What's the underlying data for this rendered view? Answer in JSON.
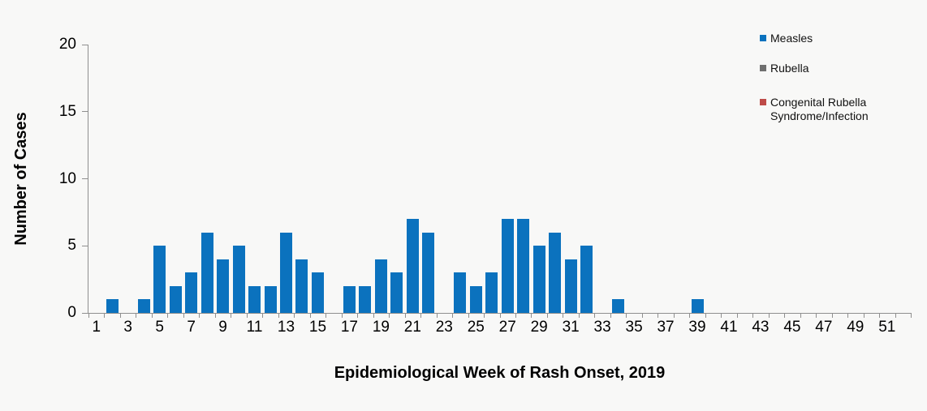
{
  "figure": {
    "background_color": "#f8f8f7",
    "axis_color": "#8f8f8f"
  },
  "y_axis": {
    "title": "Number of Cases",
    "tick_labels": [
      "0",
      "5",
      "10",
      "15",
      "20"
    ],
    "tick_values": [
      0,
      5,
      10,
      15,
      20
    ],
    "max": 20
  },
  "x_axis": {
    "title": "Epidemiological Week of Rash Onset, 2019",
    "labeled_weeks": [
      1,
      3,
      5,
      7,
      9,
      11,
      13,
      15,
      17,
      19,
      21,
      23,
      25,
      27,
      29,
      31,
      33,
      35,
      37,
      39,
      41,
      43,
      45,
      47,
      49,
      51
    ]
  },
  "legend": {
    "items": [
      {
        "label": "Measles",
        "color": "#0b72be"
      },
      {
        "label": "Rubella",
        "color": "#6f6f6f"
      },
      {
        "label": "Congenital Rubella Syndrome/Infection",
        "color": "#be4b48"
      }
    ]
  },
  "chart_data": {
    "type": "bar",
    "title": "",
    "xlabel": "Epidemiological Week of Rash Onset, 2019",
    "ylabel": "Number of Cases",
    "ylim": [
      0,
      20
    ],
    "yticks": [
      0,
      5,
      10,
      15,
      20
    ],
    "grid": false,
    "legend_position": "right-top",
    "categories": [
      1,
      2,
      3,
      4,
      5,
      6,
      7,
      8,
      9,
      10,
      11,
      12,
      13,
      14,
      15,
      16,
      17,
      18,
      19,
      20,
      21,
      22,
      23,
      24,
      25,
      26,
      27,
      28,
      29,
      30,
      31,
      32,
      33,
      34,
      35,
      36,
      37,
      38,
      39,
      40,
      41,
      42,
      43,
      44,
      45,
      46,
      47,
      48,
      49,
      50,
      51,
      52
    ],
    "series": [
      {
        "name": "Measles",
        "color": "#0b72be",
        "values": [
          0,
          1,
          0,
          1,
          5,
          2,
          3,
          6,
          4,
          5,
          2,
          2,
          6,
          4,
          3,
          0,
          2,
          2,
          4,
          3,
          7,
          6,
          0,
          3,
          2,
          3,
          7,
          7,
          5,
          6,
          4,
          5,
          0,
          1,
          0,
          0,
          0,
          0,
          1,
          0,
          0,
          0,
          0,
          0,
          0,
          0,
          0,
          0,
          0,
          0,
          0,
          0
        ]
      },
      {
        "name": "Rubella",
        "color": "#6f6f6f",
        "values": [
          0,
          0,
          0,
          0,
          0,
          0,
          0,
          0,
          0,
          0,
          0,
          0,
          0,
          0,
          0,
          0,
          0,
          0,
          0,
          0,
          0,
          0,
          0,
          0,
          0,
          0,
          0,
          0,
          0,
          0,
          0,
          0,
          0,
          0,
          0,
          0,
          0,
          0,
          0,
          0,
          0,
          0,
          0,
          0,
          0,
          0,
          0,
          0,
          0,
          0,
          0,
          0
        ]
      },
      {
        "name": "Congenital Rubella Syndrome/Infection",
        "color": "#be4b48",
        "values": [
          0,
          0,
          0,
          0,
          0,
          0,
          0,
          0,
          0,
          0,
          0,
          0,
          0,
          0,
          0,
          0,
          0,
          0,
          0,
          0,
          0,
          0,
          0,
          0,
          0,
          0,
          0,
          0,
          0,
          0,
          0,
          0,
          0,
          0,
          0,
          0,
          0,
          0,
          0,
          0,
          0,
          0,
          0,
          0,
          0,
          0,
          0,
          0,
          0,
          0,
          0,
          0
        ]
      }
    ]
  }
}
